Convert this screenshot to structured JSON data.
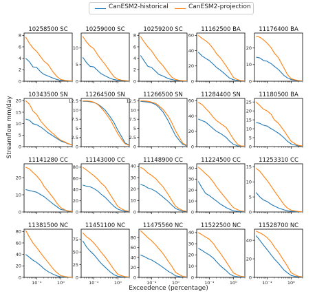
{
  "legend": {
    "historical_label": "CanESM2-historical",
    "projection_label": "CanESM2-projection"
  },
  "colors": {
    "historical": "#1f77b4",
    "projection": "#ff7f0e"
  },
  "axes": {
    "ylabel": "Streamflow mm/day",
    "xlabel": "Exceedence (percentage)"
  },
  "chart_data": {
    "type": "line",
    "xscale": "log",
    "xlim": [
      0.03,
      3
    ],
    "xticks": [
      0.1,
      1
    ],
    "xtick_labels": [
      "10⁻¹",
      "10⁰"
    ],
    "grid": false,
    "legend_placement": "top-center",
    "x": [
      0.035,
      0.05,
      0.07,
      0.1,
      0.15,
      0.2,
      0.3,
      0.5,
      0.7,
      1.0,
      1.5,
      2.0,
      3.0
    ],
    "panels": [
      {
        "title": "10258500 SC",
        "ylim": [
          0,
          8.4
        ],
        "yticks": [
          0,
          2,
          4,
          6,
          8
        ],
        "hist": [
          4.0,
          3.4,
          2.5,
          2.4,
          1.6,
          1.2,
          0.9,
          0.5,
          0.3,
          0.15,
          0.1,
          0.05,
          0.03
        ],
        "proj": [
          7.7,
          6.6,
          5.8,
          5.2,
          4.2,
          3.5,
          2.9,
          1.5,
          0.8,
          0.3,
          0.15,
          0.1,
          0.05
        ]
      },
      {
        "title": "10259000 SC",
        "ylim": [
          0,
          14.5
        ],
        "yticks": [
          0,
          5,
          10
        ],
        "hist": [
          7.2,
          5.6,
          4.5,
          4.3,
          3.1,
          2.3,
          1.6,
          0.8,
          0.5,
          0.3,
          0.2,
          0.1,
          0.05
        ],
        "proj": [
          13.5,
          11.8,
          10.6,
          9.8,
          7.8,
          6.6,
          5.0,
          2.7,
          1.3,
          0.6,
          0.3,
          0.2,
          0.1
        ]
      },
      {
        "title": "10259200 SC",
        "ylim": [
          0,
          8.4
        ],
        "yticks": [
          0,
          2,
          4,
          6,
          8
        ],
        "hist": [
          4.5,
          3.5,
          2.6,
          2.4,
          1.7,
          1.2,
          0.9,
          0.45,
          0.3,
          0.15,
          0.1,
          0.05,
          0.03
        ],
        "proj": [
          7.8,
          6.8,
          6.0,
          5.3,
          4.2,
          3.5,
          2.7,
          1.4,
          0.7,
          0.3,
          0.15,
          0.1,
          0.05
        ]
      },
      {
        "title": "11162500 BA",
        "ylim": [
          0,
          63
        ],
        "yticks": [
          0,
          20,
          40,
          60
        ],
        "hist": [
          38,
          33,
          30,
          27,
          22,
          18,
          14,
          8,
          4,
          2,
          1,
          0.5,
          0.3
        ],
        "proj": [
          60,
          56,
          53,
          49,
          42,
          36,
          30,
          20,
          13,
          5,
          2,
          1,
          0.5
        ]
      },
      {
        "title": "11176400 BA",
        "ylim": [
          0,
          29
        ],
        "yticks": [
          0,
          10,
          20
        ],
        "hist": [
          14.5,
          14,
          12.5,
          12,
          10.5,
          9,
          7,
          3.5,
          2,
          1,
          0.5,
          0.3,
          0.1
        ],
        "proj": [
          27,
          26.5,
          25,
          23,
          20,
          17,
          14,
          8,
          4,
          1.5,
          0.8,
          0.4,
          0.2
        ]
      },
      {
        "title": "10343500 SN",
        "ylim": [
          0,
          21
        ],
        "yticks": [
          0,
          5,
          10,
          15,
          20
        ],
        "hist": [
          12.0,
          11.5,
          10.0,
          9.5,
          8.5,
          7.5,
          6.0,
          4.5,
          3.5,
          2.5,
          1.8,
          1.2,
          0.8
        ],
        "proj": [
          20.0,
          18.5,
          15.5,
          14.0,
          11.0,
          9.5,
          7.5,
          5.5,
          4.0,
          2.8,
          2.0,
          1.3,
          0.8
        ]
      },
      {
        "title": "11264500 SN",
        "ylim": [
          0,
          13.2
        ],
        "yticks": [
          0,
          2.5,
          5.0,
          7.5,
          10.0,
          12.5
        ],
        "hist": [
          12.4,
          12.4,
          12.3,
          12.1,
          11.6,
          11.0,
          10.0,
          8.0,
          6.5,
          4.5,
          2.5,
          1.0,
          0.4
        ],
        "proj": [
          12.5,
          12.5,
          12.4,
          12.2,
          11.5,
          10.7,
          9.3,
          7.2,
          5.4,
          3.5,
          1.8,
          0.8,
          0.3
        ]
      },
      {
        "title": "11266500 SN",
        "ylim": [
          0,
          13.2
        ],
        "yticks": [
          0,
          2.5,
          5.0,
          7.5,
          10.0,
          12.5
        ],
        "hist": [
          12.4,
          12.3,
          12.2,
          12.0,
          11.5,
          10.8,
          9.5,
          7.0,
          5.0,
          3.0,
          1.5,
          0.6,
          0.2
        ],
        "proj": [
          12.5,
          12.5,
          12.4,
          12.2,
          11.8,
          11.2,
          10.2,
          8.3,
          6.5,
          4.3,
          2.3,
          0.9,
          0.3
        ]
      },
      {
        "title": "11284400 SN",
        "ylim": [
          0,
          63
        ],
        "yticks": [
          0,
          20,
          40,
          60
        ],
        "hist": [
          36,
          34,
          32,
          28,
          23,
          20,
          17,
          12,
          7,
          3,
          1,
          0.5,
          0.3
        ],
        "proj": [
          58,
          55,
          50,
          45,
          38,
          34,
          30,
          25,
          18,
          10,
          3,
          1,
          0.5
        ]
      },
      {
        "title": "11180500 BA",
        "ylim": [
          0,
          27
        ],
        "yticks": [
          0,
          5,
          10,
          15,
          20,
          25
        ],
        "hist": [
          13.5,
          13,
          12,
          11.5,
          10,
          9,
          7.5,
          5,
          3,
          1.5,
          0.8,
          0.4,
          0.2
        ],
        "proj": [
          25,
          23,
          21,
          20,
          18,
          15,
          13,
          9,
          6,
          3,
          1.5,
          0.7,
          0.3
        ]
      },
      {
        "title": "11141280 CC",
        "ylim": [
          0,
          28
        ],
        "yticks": [
          0,
          10,
          20
        ],
        "hist": [
          13,
          12.5,
          12,
          11.5,
          10,
          9,
          7,
          4.5,
          3,
          1.5,
          1,
          0.5,
          0.3
        ],
        "proj": [
          26,
          25,
          23,
          21,
          18,
          15,
          12,
          8,
          5,
          2.5,
          1.2,
          0.6,
          0.3
        ]
      },
      {
        "title": "11143000 CC",
        "ylim": [
          0,
          86
        ],
        "yticks": [
          0,
          20,
          40,
          60,
          80
        ],
        "hist": [
          48,
          46,
          45,
          42,
          37,
          32,
          26,
          16,
          10,
          5,
          2.5,
          1.2,
          0.6
        ],
        "proj": [
          80,
          75,
          70,
          65,
          58,
          52,
          45,
          30,
          20,
          10,
          5,
          2.5,
          1.2
        ]
      },
      {
        "title": "11148900 CC",
        "ylim": [
          0,
          42
        ],
        "yticks": [
          0,
          10,
          20,
          30,
          40
        ],
        "hist": [
          24,
          23,
          21,
          20,
          18,
          16,
          13,
          9,
          6,
          3,
          1.5,
          0.8,
          0.4
        ],
        "proj": [
          39,
          37,
          34,
          32,
          29,
          26,
          22,
          15,
          10,
          5,
          2.5,
          1.2,
          0.6
        ]
      },
      {
        "title": "11224500 CC",
        "ylim": [
          0,
          44
        ],
        "yticks": [
          0,
          10,
          20,
          30,
          40
        ],
        "hist": [
          28,
          22,
          17,
          15,
          12,
          10,
          7,
          4,
          2.5,
          1,
          0.5,
          0.3,
          0.1
        ],
        "proj": [
          41,
          38,
          35,
          32,
          27,
          23,
          18,
          12,
          8,
          4,
          2,
          1,
          0.5
        ]
      },
      {
        "title": "11253310 CC",
        "ylim": [
          0,
          16
        ],
        "yticks": [
          0,
          5,
          10,
          15
        ],
        "hist": [
          6.5,
          5,
          4,
          3.5,
          2.5,
          2,
          1.3,
          0.7,
          0.4,
          0.2,
          0.1,
          0.05,
          0.02
        ],
        "proj": [
          14.5,
          13.5,
          12,
          10.5,
          8.5,
          7,
          5,
          2.5,
          1.3,
          0.6,
          0.3,
          0.15,
          0.05
        ]
      },
      {
        "title": "11381500 NC",
        "ylim": [
          0,
          84
        ],
        "yticks": [
          0,
          20,
          40,
          60,
          80
        ],
        "hist": [
          40,
          35,
          30,
          26,
          20,
          15,
          10,
          5,
          2.5,
          1,
          0.5,
          0.2,
          0.1
        ],
        "proj": [
          82,
          70,
          60,
          52,
          42,
          35,
          26,
          14,
          8,
          3,
          1.5,
          0.7,
          0.3
        ]
      },
      {
        "title": "11451100 NC",
        "ylim": [
          0,
          95
        ],
        "yticks": [
          0,
          25,
          50,
          75
        ],
        "hist": [
          72,
          60,
          52,
          45,
          35,
          28,
          20,
          10,
          5,
          2,
          1,
          0.5,
          0.2
        ],
        "proj": [
          88,
          80,
          75,
          68,
          58,
          50,
          40,
          25,
          15,
          6,
          3,
          1.5,
          0.5
        ]
      },
      {
        "title": "11475560 NC",
        "ylim": [
          0,
          97
        ],
        "yticks": [
          0,
          20,
          40,
          60,
          80
        ],
        "hist": [
          45,
          42,
          38,
          35,
          30,
          26,
          20,
          12,
          8,
          3,
          1.5,
          0.7,
          0.3
        ],
        "proj": [
          94,
          87,
          80,
          74,
          65,
          58,
          48,
          32,
          22,
          10,
          5,
          2,
          1
        ]
      },
      {
        "title": "11522500 NC",
        "ylim": [
          0,
          43
        ],
        "yticks": [
          0,
          10,
          20,
          30,
          40
        ],
        "hist": [
          26,
          24,
          22,
          20,
          17,
          14,
          10,
          6,
          3,
          1.2,
          0.6,
          0.3,
          0.1
        ],
        "proj": [
          40,
          38,
          36,
          34,
          30,
          26,
          21,
          14,
          9,
          4,
          2,
          1,
          0.5
        ]
      },
      {
        "title": "11528700 NC",
        "ylim": [
          0,
          52
        ],
        "yticks": [
          0,
          20,
          40
        ],
        "hist": [
          45,
          40,
          35,
          30,
          24,
          20,
          15,
          8,
          5,
          2,
          1,
          0.5,
          0.2
        ],
        "proj": [
          50,
          48,
          46,
          43,
          38,
          33,
          27,
          18,
          12,
          5,
          2.5,
          1.2,
          0.5
        ]
      }
    ]
  }
}
